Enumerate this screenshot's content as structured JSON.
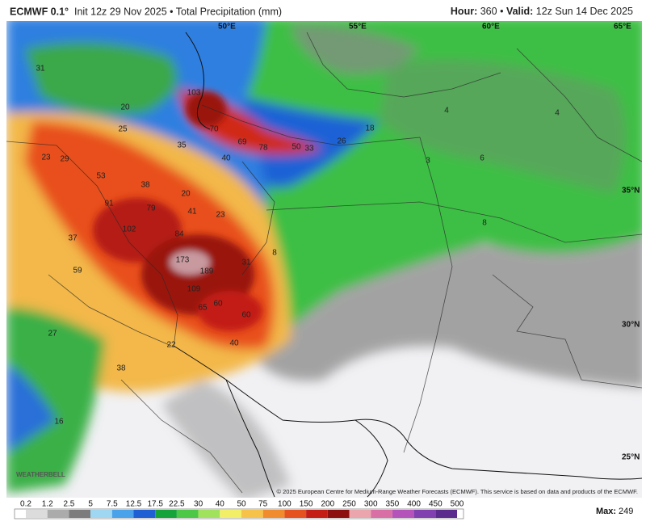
{
  "header": {
    "model": "ECMWF 0.1°",
    "subtitle": "Init 12z 29 Nov 2025 • Total Precipitation (mm)",
    "hour_label": "Hour:",
    "hour": "360",
    "separator": "•",
    "valid_label": "Valid:",
    "valid": "12z Sun 14 Dec 2025"
  },
  "map": {
    "graticule_labels": [
      "50°E",
      "55°E",
      "60°E",
      "65°E",
      "35°N",
      "30°N",
      "25°N"
    ],
    "precip_labels": [
      31,
      103,
      70,
      69,
      78,
      50,
      33,
      26,
      25,
      20,
      35,
      40,
      29,
      23,
      53,
      38,
      91,
      79,
      41,
      23,
      20,
      102,
      84,
      37,
      173,
      189,
      31,
      59,
      109,
      65,
      60,
      60,
      27,
      40,
      22,
      38,
      16,
      8,
      4,
      6,
      18,
      3,
      8,
      4
    ],
    "logo": "WEATHERBELL",
    "copyright": "© 2025 European Centre for Medium-Range Weather Forecasts (ECMWF). This service is based on data and products of the ECMWF."
  },
  "colorbar": {
    "labels": [
      0.2,
      1.2,
      2.5,
      5,
      7.5,
      12.5,
      17.5,
      22.5,
      30,
      40,
      50,
      75,
      100,
      150,
      200,
      250,
      300,
      350,
      400,
      450,
      500
    ],
    "colors": [
      "#dcdcdc",
      "#ababab",
      "#7c7c7c",
      "#9fd6f2",
      "#4aa3ea",
      "#1f5fd4",
      "#16a33a",
      "#4cc746",
      "#a1e25c",
      "#f2ee68",
      "#f7c24a",
      "#f08c2d",
      "#e5511f",
      "#c31d16",
      "#8c1010",
      "#eaa5ad",
      "#d870a6",
      "#b454bb",
      "#8040b0",
      "#5a2b8c"
    ],
    "max_label": "Max:",
    "max": 249
  }
}
